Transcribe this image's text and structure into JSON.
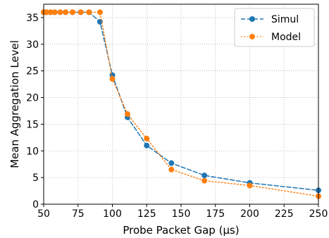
{
  "chart_data": {
    "type": "line",
    "xlabel": "Probe Packet Gap (μs)",
    "ylabel": "Mean Aggregation Level",
    "xlim": [
      50,
      250
    ],
    "ylim": [
      0,
      37.5
    ],
    "xticks": [
      50,
      75,
      100,
      125,
      150,
      175,
      200,
      225,
      250
    ],
    "yticks": [
      0,
      5,
      10,
      15,
      20,
      25,
      30,
      35
    ],
    "grid": true,
    "legend_position": "top-right",
    "series": [
      {
        "name": "Simul",
        "color": "#1f77b4",
        "line_style": "dashed",
        "marker": "circle",
        "x": [
          50,
          52,
          55,
          58,
          62,
          66,
          71,
          77,
          83,
          91,
          100,
          111,
          125,
          143,
          167,
          200,
          250
        ],
        "y": [
          36,
          36,
          36,
          36,
          36,
          36,
          36,
          36,
          36,
          34.2,
          24.2,
          16.3,
          11.0,
          7.7,
          5.4,
          4.0,
          2.6
        ]
      },
      {
        "name": "Model",
        "color": "#ff7f0e",
        "line_style": "dotted",
        "marker": "circle",
        "x": [
          50,
          52,
          55,
          58,
          62,
          66,
          71,
          77,
          83,
          91,
          100,
          111,
          125,
          143,
          167,
          200,
          250
        ],
        "y": [
          36,
          36,
          36,
          36,
          36,
          36,
          36,
          36,
          36,
          36,
          23.5,
          16.9,
          12.3,
          6.5,
          4.4,
          3.5,
          1.5
        ]
      }
    ]
  }
}
